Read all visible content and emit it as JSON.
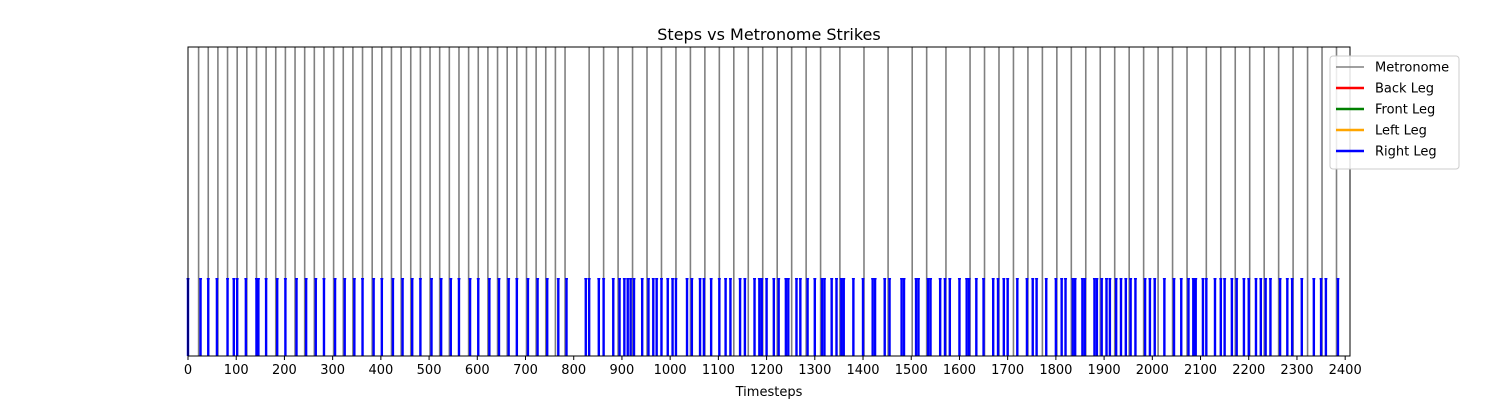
{
  "chart_data": {
    "type": "line",
    "title": "Steps vs Metronome Strikes",
    "xlabel": "Timesteps",
    "ylabel": "",
    "xlim": [
      0,
      2410
    ],
    "ylim": [
      0,
      1
    ],
    "x_ticks": [
      0,
      100,
      200,
      300,
      400,
      500,
      600,
      700,
      800,
      900,
      1000,
      1100,
      1200,
      1300,
      1400,
      1500,
      1600,
      1700,
      1800,
      1900,
      2000,
      2100,
      2200,
      2300,
      2400
    ],
    "grid": false,
    "legend_position": "upper-right-outside",
    "series": [
      {
        "name": "Metronome",
        "color": "#808080",
        "style": "vertical-lines",
        "y_from": 0,
        "y_to": 1,
        "x": [
          22,
          42,
          62,
          82,
          102,
          122,
          142,
          162,
          182,
          202,
          222,
          242,
          262,
          282,
          302,
          322,
          342,
          362,
          382,
          402,
          422,
          442,
          462,
          482,
          502,
          522,
          542,
          562,
          582,
          602,
          622,
          642,
          662,
          682,
          702,
          722,
          742,
          762,
          782,
          832,
          862,
          892,
          922,
          952,
          982,
          1012,
          1042,
          1072,
          1102,
          1132,
          1162,
          1192,
          1222,
          1252,
          1282,
          1312,
          1352,
          1402,
          1452,
          1502,
          1532,
          1572,
          1622,
          1652,
          1682,
          1712,
          1742,
          1772,
          1802,
          1832,
          1862,
          1892,
          1922,
          1952,
          1982,
          2012,
          2042,
          2072,
          2112,
          2142,
          2172,
          2202,
          2232,
          2262,
          2292,
          2322,
          2352,
          2382
        ]
      },
      {
        "name": "Back Leg",
        "color": "#ff0000",
        "style": "vertical-lines",
        "x": []
      },
      {
        "name": "Front Leg",
        "color": "#008000",
        "style": "vertical-lines",
        "x": []
      },
      {
        "name": "Left Leg",
        "color": "#ffa500",
        "style": "vertical-lines",
        "x": []
      },
      {
        "name": "Right Leg",
        "color": "#0000ff",
        "style": "vertical-lines",
        "y_from": 0,
        "y_to": 0.25,
        "x": [
          0,
          26,
          42,
          60,
          82,
          95,
          102,
          120,
          142,
          146,
          162,
          185,
          202,
          225,
          245,
          265,
          282,
          305,
          325,
          345,
          362,
          385,
          402,
          425,
          445,
          465,
          482,
          505,
          525,
          545,
          562,
          585,
          602,
          625,
          645,
          665,
          682,
          705,
          725,
          745,
          768,
          785,
          825,
          832,
          852,
          862,
          882,
          895,
          905,
          912,
          918,
          925,
          942,
          955,
          965,
          972,
          982,
          995,
          1005,
          1012,
          1035,
          1045,
          1062,
          1070,
          1085,
          1102,
          1115,
          1125,
          1145,
          1155,
          1175,
          1185,
          1190,
          1200,
          1215,
          1225,
          1240,
          1245,
          1262,
          1270,
          1285,
          1300,
          1315,
          1320,
          1335,
          1345,
          1355,
          1360,
          1380,
          1400,
          1420,
          1425,
          1445,
          1455,
          1480,
          1485,
          1510,
          1515,
          1535,
          1540,
          1560,
          1570,
          1580,
          1600,
          1615,
          1620,
          1635,
          1650,
          1670,
          1680,
          1692,
          1700,
          1720,
          1740,
          1752,
          1760,
          1780,
          1800,
          1812,
          1820,
          1835,
          1840,
          1855,
          1860,
          1880,
          1885,
          1895,
          1905,
          1912,
          1925,
          1935,
          1945,
          1955,
          1965,
          1985,
          1995,
          2005,
          2025,
          2045,
          2060,
          2075,
          2085,
          2090,
          2105,
          2112,
          2130,
          2142,
          2150,
          2165,
          2175,
          2190,
          2200,
          2215,
          2225,
          2235,
          2245,
          2265,
          2280,
          2290,
          2310,
          2335,
          2350,
          2360,
          2385
        ]
      }
    ]
  }
}
